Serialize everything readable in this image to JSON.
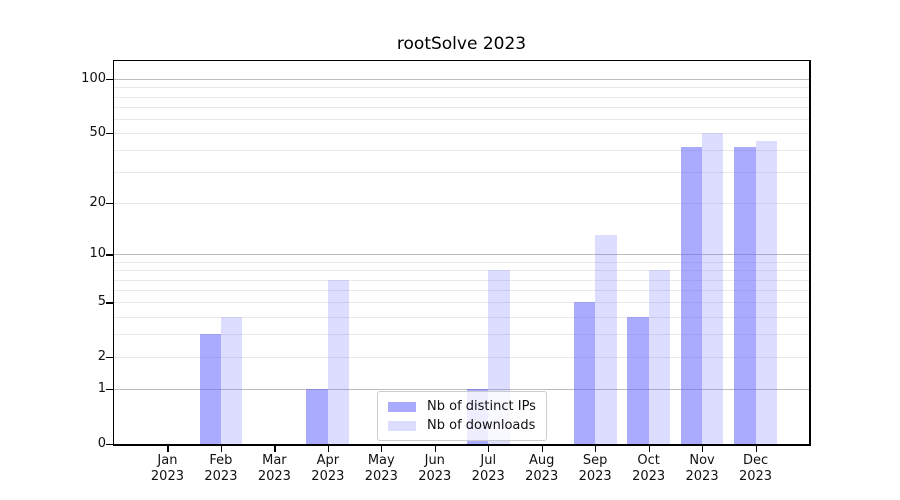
{
  "chart_data": {
    "type": "bar",
    "title": "rootSolve 2023",
    "categories": [
      "Jan",
      "Feb",
      "Mar",
      "Apr",
      "May",
      "Jun",
      "Jul",
      "Aug",
      "Sep",
      "Oct",
      "Nov",
      "Dec"
    ],
    "category_year": "2023",
    "series": [
      {
        "name": "Nb of distinct IPs",
        "values": [
          0,
          3,
          0,
          1,
          0,
          0,
          1,
          0,
          5,
          4,
          42,
          42
        ],
        "color": "rgba(100,100,255,0.55)"
      },
      {
        "name": "Nb of downloads",
        "values": [
          0,
          4,
          0,
          7,
          0,
          0,
          8,
          0,
          13,
          8,
          50,
          45
        ],
        "color": "rgba(100,100,255,0.22)"
      }
    ],
    "xlabel": "",
    "ylabel": "",
    "y_scale": "log1p",
    "y_tick_values": [
      0,
      1,
      2,
      5,
      10,
      20,
      50,
      100
    ],
    "y_tick_labels": [
      "0",
      "1",
      "2",
      "5",
      "10",
      "20",
      "50",
      "100"
    ],
    "y_major_gridlines": [
      1,
      10,
      100
    ],
    "y_minor_gridlines": [
      2,
      3,
      4,
      5,
      6,
      7,
      8,
      9,
      20,
      30,
      40,
      50,
      60,
      70,
      80,
      90
    ],
    "ylim": [
      0,
      126
    ],
    "grid": true,
    "legend_position": "lower center"
  },
  "colors": {
    "background": "#ffffff",
    "axis": "#000000",
    "text": "#111111",
    "gridline_minor": "#e9e9e9",
    "gridline_major": "#bdbdbd",
    "legend_border": "#cccccc",
    "legend_background": "rgba(255,255,255,0.8)",
    "bar_distinct_ips": "rgba(100,100,255,0.55)",
    "bar_downloads": "rgba(100,100,255,0.22)"
  }
}
